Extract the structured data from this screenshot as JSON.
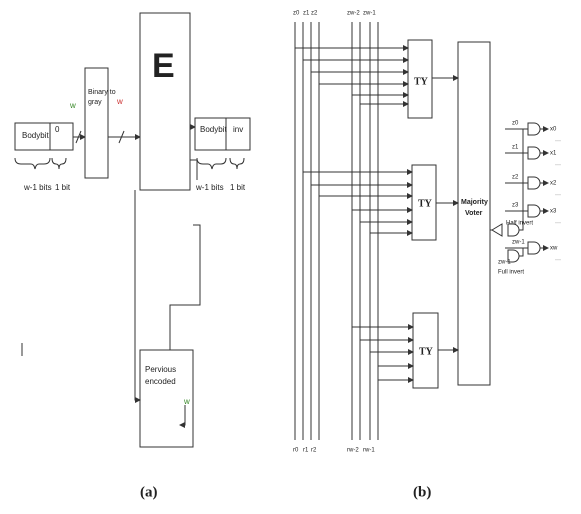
{
  "panel_a": {
    "caption": "(a)",
    "input_body": "Bodybit",
    "input_flag": "0",
    "input_width": "w",
    "converter": [
      "Binary to",
      "gray"
    ],
    "converter_width": "w",
    "encoder": "E",
    "output_body": "Bodybit",
    "output_flag": "inv",
    "brace_labels": [
      "w-1 bits",
      "1 bit",
      "w-1 bits",
      "1 bit"
    ],
    "feedback": [
      "Pervious",
      "encoded"
    ],
    "feedback_width": "w"
  },
  "panel_b": {
    "caption": "(b)",
    "top_labels": [
      "z0",
      "z1",
      "z2",
      "zw-2",
      "zw-1"
    ],
    "bottom_labels": [
      "r0",
      "r1",
      "r2",
      "rw-2",
      "rw-1"
    ],
    "units": [
      "TY",
      "TY",
      "TY"
    ],
    "voter": [
      "Majority",
      "Voter"
    ],
    "half_invert": "Half invert",
    "full_invert": "Full invert",
    "gate_inputs": [
      "z0",
      "z1",
      "z2",
      "z3",
      "zw-1"
    ],
    "control_input": "zw-1",
    "outputs": [
      "x0",
      "x1",
      "x2",
      "x3",
      "xw"
    ]
  }
}
